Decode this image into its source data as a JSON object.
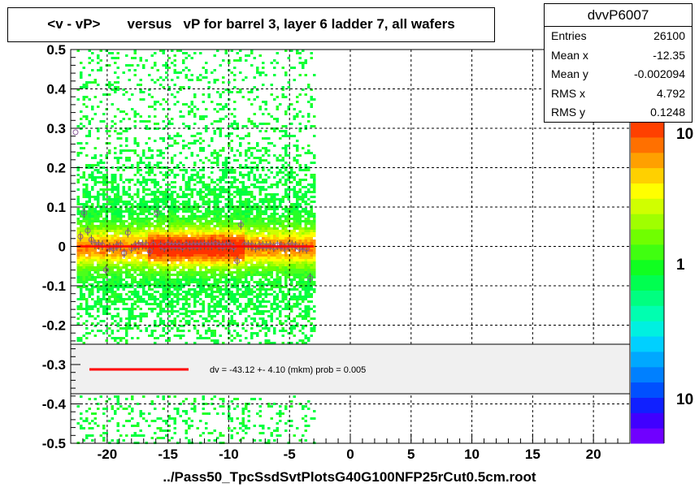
{
  "title": "<v - vP>       versus   vP for barrel 3, layer 6 ladder 7, all wafers",
  "x_axis_title": "../Pass50_TpcSsdSvtPlotsG40G100NFP25rCut0.5cm.root",
  "stats": {
    "name": "dvvP6007",
    "rows": [
      {
        "label": "Entries",
        "value": "26100"
      },
      {
        "label": "Mean x",
        "value": "-12.35"
      },
      {
        "label": "Mean y",
        "value": "-0.002094"
      },
      {
        "label": "RMS x",
        "value": "4.792"
      },
      {
        "label": "RMS y",
        "value": "0.1248"
      }
    ]
  },
  "fit_legend": "dv =  -43.12 +-  4.10 (mkm) prob = 0.005",
  "colors": {
    "fit_line": "#ff0000",
    "grid": "#000000",
    "legend_fill": "#f0f0f0"
  },
  "chart_data": {
    "type": "heatmap",
    "xlim": [
      -23,
      23
    ],
    "ylim": [
      -0.5,
      0.5
    ],
    "x_ticks": [
      -20,
      -15,
      -10,
      -5,
      0,
      5,
      10,
      15,
      20
    ],
    "x_tick_labels": [
      "-20",
      "-15",
      "-10",
      "-5",
      "0",
      "5",
      "10",
      "15",
      "20"
    ],
    "y_ticks": [
      -0.5,
      -0.4,
      -0.3,
      -0.2,
      -0.1,
      0,
      0.1,
      0.2,
      0.3,
      0.4,
      0.5
    ],
    "y_tick_labels": [
      "-0.5",
      "-0.4",
      "-0.3",
      "-0.2",
      "-0.1",
      "0",
      "0.1",
      "0.2",
      "0.3",
      "0.4",
      "0.5"
    ],
    "grid": true,
    "z_scale": "log",
    "z_axis_labels": [
      "10",
      "1",
      "10"
    ],
    "filled_x_range": [
      -22.5,
      -3
    ],
    "fit_line": {
      "x": [
        -22.5,
        -3
      ],
      "y": [
        0.0,
        0.0
      ]
    },
    "profile_points": {
      "x": [
        -22.2,
        -21.9,
        -21.6,
        -21.3,
        -21.0,
        -20.7,
        -20.4,
        -20.1,
        -19.8,
        -19.5,
        -19.2,
        -18.9,
        -18.6,
        -18.3,
        -18.0,
        -17.7,
        -17.4,
        -17.1,
        -16.8,
        -16.5,
        -16.2,
        -15.9,
        -15.6,
        -15.3,
        -15.0,
        -14.7,
        -14.4,
        -14.1,
        -13.8,
        -13.5,
        -13.2,
        -12.9,
        -12.6,
        -12.3,
        -12.0,
        -11.7,
        -11.4,
        -11.1,
        -10.8,
        -10.5,
        -10.2,
        -9.9,
        -9.6,
        -9.3,
        -9.0,
        -8.7,
        -8.4,
        -8.1,
        -7.8,
        -7.5,
        -7.2,
        -6.9,
        -6.6,
        -6.3,
        -6.0,
        -5.7,
        -5.4,
        -5.1,
        -4.8,
        -4.5,
        -4.2,
        -3.9,
        -3.6,
        -3.3
      ],
      "y": [
        0.025,
        0.085,
        0.04,
        0.017,
        0.005,
        0.004,
        0.003,
        -0.06,
        -0.003,
        -0.005,
        0.001,
        0.003,
        -0.017,
        0.035,
        -0.005,
        0.002,
        0.003,
        0.004,
        0.004,
        -0.013,
        0.004,
        0.085,
        0.002,
        -0.003,
        0.005,
        0.002,
        0.002,
        0.002,
        -0.002,
        0.004,
        0.001,
        0.003,
        0.002,
        0.003,
        0.004,
        0.003,
        0.003,
        0.006,
        0.002,
        0.001,
        0.003,
        0.003,
        -0.002,
        -0.037,
        0.055,
        0.004,
        0.003,
        0.002,
        -0.003,
        0.001,
        0.002,
        0.001,
        0.002,
        -0.002,
        0.003,
        0.001,
        -0.004,
        0.002,
        0.003,
        0.001,
        -0.004,
        -0.003,
        -0.006,
        -0.08
      ],
      "outliers": [
        {
          "x": -22.6,
          "y": 0.29
        }
      ]
    }
  }
}
